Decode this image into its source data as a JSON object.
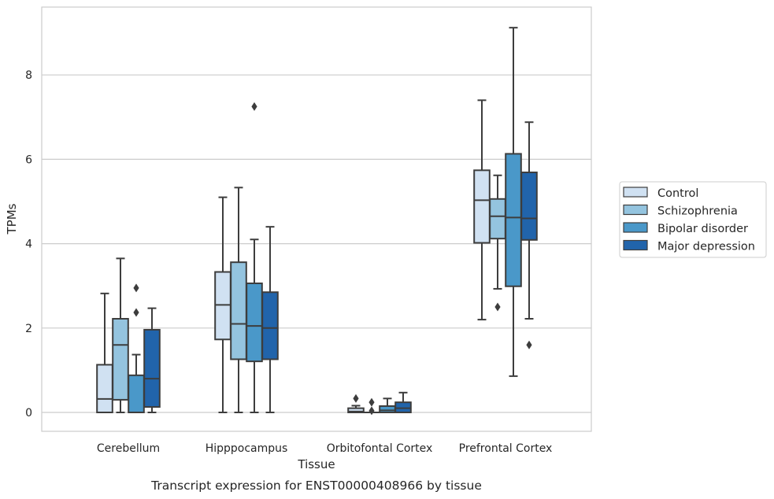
{
  "chart_data": {
    "type": "box",
    "caption": "Transcript expression for ENST00000408966 by tissue",
    "xlabel": "Tissue",
    "ylabel": "TPMs",
    "ylim": [
      -0.4,
      9.6
    ],
    "yticks": [
      0,
      2,
      4,
      6,
      8
    ],
    "grid": "horizontal",
    "legend_position": "right",
    "categories": [
      "Cerebellum",
      "Hipppocampus",
      "Orbitofontal Cortex",
      "Prefrontal Cortex"
    ],
    "series": [
      {
        "name": "Control",
        "color": "#d0e1f2",
        "boxes": [
          {
            "whisker_low": 0.0,
            "q1": 0.0,
            "median": 0.32,
            "q3": 1.13,
            "whisker_high": 2.82,
            "outliers": []
          },
          {
            "whisker_low": 0.0,
            "q1": 1.73,
            "median": 2.55,
            "q3": 3.33,
            "whisker_high": 5.1,
            "outliers": []
          },
          {
            "whisker_low": 0.0,
            "q1": 0.0,
            "median": 0.02,
            "q3": 0.1,
            "whisker_high": 0.16,
            "outliers": [
              0.33
            ]
          },
          {
            "whisker_low": 2.2,
            "q1": 4.02,
            "median": 5.03,
            "q3": 5.74,
            "whisker_high": 7.4,
            "outliers": []
          }
        ]
      },
      {
        "name": "Schizophrenia",
        "color": "#94c4df",
        "boxes": [
          {
            "whisker_low": 0.0,
            "q1": 0.3,
            "median": 1.6,
            "q3": 2.22,
            "whisker_high": 3.65,
            "outliers": []
          },
          {
            "whisker_low": 0.0,
            "q1": 1.26,
            "median": 2.1,
            "q3": 3.56,
            "whisker_high": 5.33,
            "outliers": []
          },
          {
            "whisker_low": 0.0,
            "q1": 0.0,
            "median": 0.0,
            "q3": 0.0,
            "whisker_high": 0.0,
            "outliers": [
              0.24,
              0.04
            ]
          },
          {
            "whisker_low": 2.93,
            "q1": 4.12,
            "median": 4.65,
            "q3": 5.06,
            "whisker_high": 5.62,
            "outliers": [
              2.5
            ]
          }
        ]
      },
      {
        "name": "Bipolar disorder",
        "color": "#4a98c9",
        "boxes": [
          {
            "whisker_low": 0.0,
            "q1": 0.0,
            "median": 0.0,
            "q3": 0.88,
            "whisker_high": 1.37,
            "outliers": [
              2.95,
              2.37
            ]
          },
          {
            "whisker_low": 0.0,
            "q1": 1.21,
            "median": 2.05,
            "q3": 3.06,
            "whisker_high": 4.1,
            "outliers": [
              7.25
            ]
          },
          {
            "whisker_low": 0.0,
            "q1": 0.0,
            "median": 0.05,
            "q3": 0.15,
            "whisker_high": 0.33,
            "outliers": []
          },
          {
            "whisker_low": 0.86,
            "q1": 2.99,
            "median": 4.62,
            "q3": 6.13,
            "whisker_high": 9.12,
            "outliers": []
          }
        ]
      },
      {
        "name": "Major depression",
        "color": "#2164ab",
        "boxes": [
          {
            "whisker_low": 0.0,
            "q1": 0.13,
            "median": 0.8,
            "q3": 1.96,
            "whisker_high": 2.47,
            "outliers": []
          },
          {
            "whisker_low": 0.0,
            "q1": 1.26,
            "median": 2.0,
            "q3": 2.85,
            "whisker_high": 4.4,
            "outliers": []
          },
          {
            "whisker_low": 0.0,
            "q1": 0.0,
            "median": 0.1,
            "q3": 0.24,
            "whisker_high": 0.47,
            "outliers": []
          },
          {
            "whisker_low": 2.22,
            "q1": 4.09,
            "median": 4.6,
            "q3": 5.69,
            "whisker_high": 6.88,
            "outliers": [
              1.6
            ]
          }
        ]
      }
    ]
  }
}
